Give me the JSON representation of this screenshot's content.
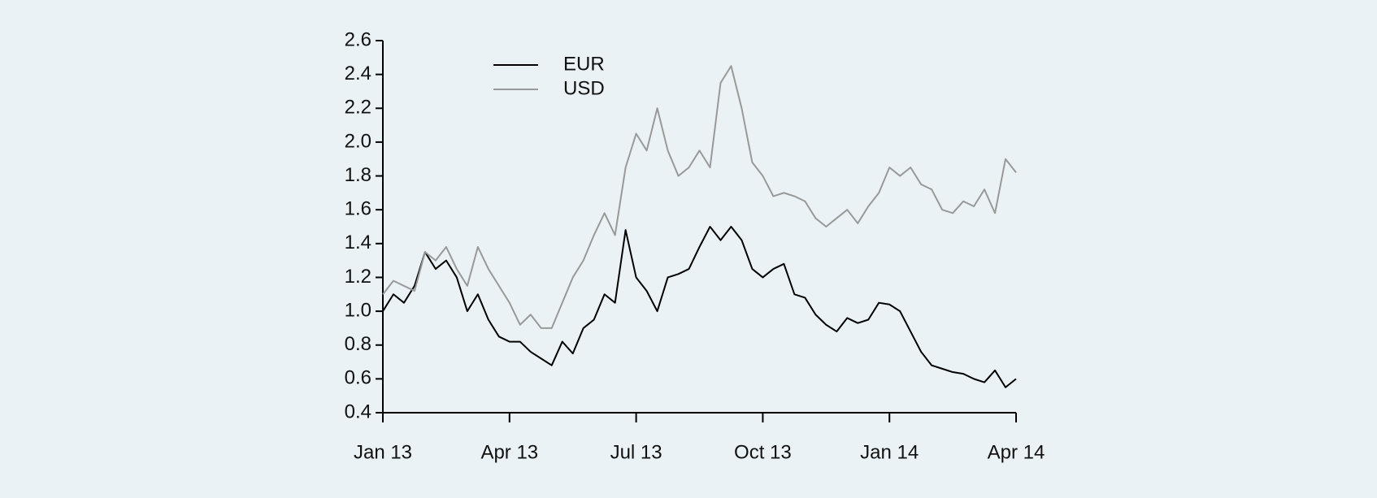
{
  "chart_data": {
    "type": "line",
    "x": [
      0,
      0.25,
      0.5,
      0.75,
      1,
      1.25,
      1.5,
      1.75,
      2,
      2.25,
      2.5,
      2.75,
      3,
      3.25,
      3.5,
      3.75,
      4,
      4.25,
      4.5,
      4.75,
      5,
      5.25,
      5.5,
      5.75,
      6,
      6.25,
      6.5,
      6.75,
      7,
      7.25,
      7.5,
      7.75,
      8,
      8.25,
      8.5,
      8.75,
      9,
      9.25,
      9.5,
      9.75,
      10,
      10.25,
      10.5,
      10.75,
      11,
      11.25,
      11.5,
      11.75,
      12,
      12.25,
      12.5,
      12.75,
      13,
      13.25,
      13.5,
      13.75,
      14,
      14.25,
      14.5,
      14.75,
      15
    ],
    "series": [
      {
        "name": "EUR",
        "color": "#000000",
        "values": [
          1.0,
          1.1,
          1.05,
          1.15,
          1.35,
          1.25,
          1.3,
          1.2,
          1.0,
          1.1,
          0.95,
          0.85,
          0.82,
          0.82,
          0.76,
          0.72,
          0.68,
          0.82,
          0.75,
          0.9,
          0.95,
          1.1,
          1.05,
          1.48,
          1.2,
          1.12,
          1.0,
          1.2,
          1.22,
          1.25,
          1.38,
          1.5,
          1.42,
          1.5,
          1.42,
          1.25,
          1.2,
          1.25,
          1.28,
          1.1,
          1.08,
          0.98,
          0.92,
          0.88,
          0.96,
          0.93,
          0.95,
          1.05,
          1.04,
          1.0,
          0.88,
          0.76,
          0.68,
          0.66,
          0.64,
          0.63,
          0.6,
          0.58,
          0.65,
          0.55,
          0.6
        ]
      },
      {
        "name": "USD",
        "color": "#999999",
        "values": [
          1.1,
          1.18,
          1.15,
          1.12,
          1.35,
          1.3,
          1.38,
          1.25,
          1.15,
          1.38,
          1.25,
          1.15,
          1.05,
          0.92,
          0.98,
          0.9,
          0.9,
          1.05,
          1.2,
          1.3,
          1.45,
          1.58,
          1.45,
          1.85,
          2.05,
          1.95,
          2.2,
          1.95,
          1.8,
          1.85,
          1.95,
          1.85,
          2.35,
          2.45,
          2.2,
          1.88,
          1.8,
          1.68,
          1.7,
          1.68,
          1.65,
          1.55,
          1.5,
          1.55,
          1.6,
          1.52,
          1.62,
          1.7,
          1.85,
          1.8,
          1.85,
          1.75,
          1.72,
          1.6,
          1.58,
          1.65,
          1.62,
          1.72,
          1.58,
          1.9,
          1.82
        ]
      }
    ],
    "xlim": [
      0,
      15
    ],
    "xticks": [
      {
        "value": 0,
        "label": "Jan 13"
      },
      {
        "value": 3,
        "label": "Apr 13"
      },
      {
        "value": 6,
        "label": "Jul 13"
      },
      {
        "value": 9,
        "label": "Oct 13"
      },
      {
        "value": 12,
        "label": "Jan 14"
      },
      {
        "value": 15,
        "label": "Apr 14"
      }
    ],
    "ylim": [
      0.4,
      2.6
    ],
    "yticks": [
      0.4,
      0.6,
      0.8,
      {
        "value": 1,
        "label": "1.0"
      },
      1.2,
      1.4,
      1.6,
      1.8,
      {
        "value": 2,
        "label": "2.0"
      },
      2.2,
      2.4,
      2.6
    ],
    "legend": "upper left"
  }
}
